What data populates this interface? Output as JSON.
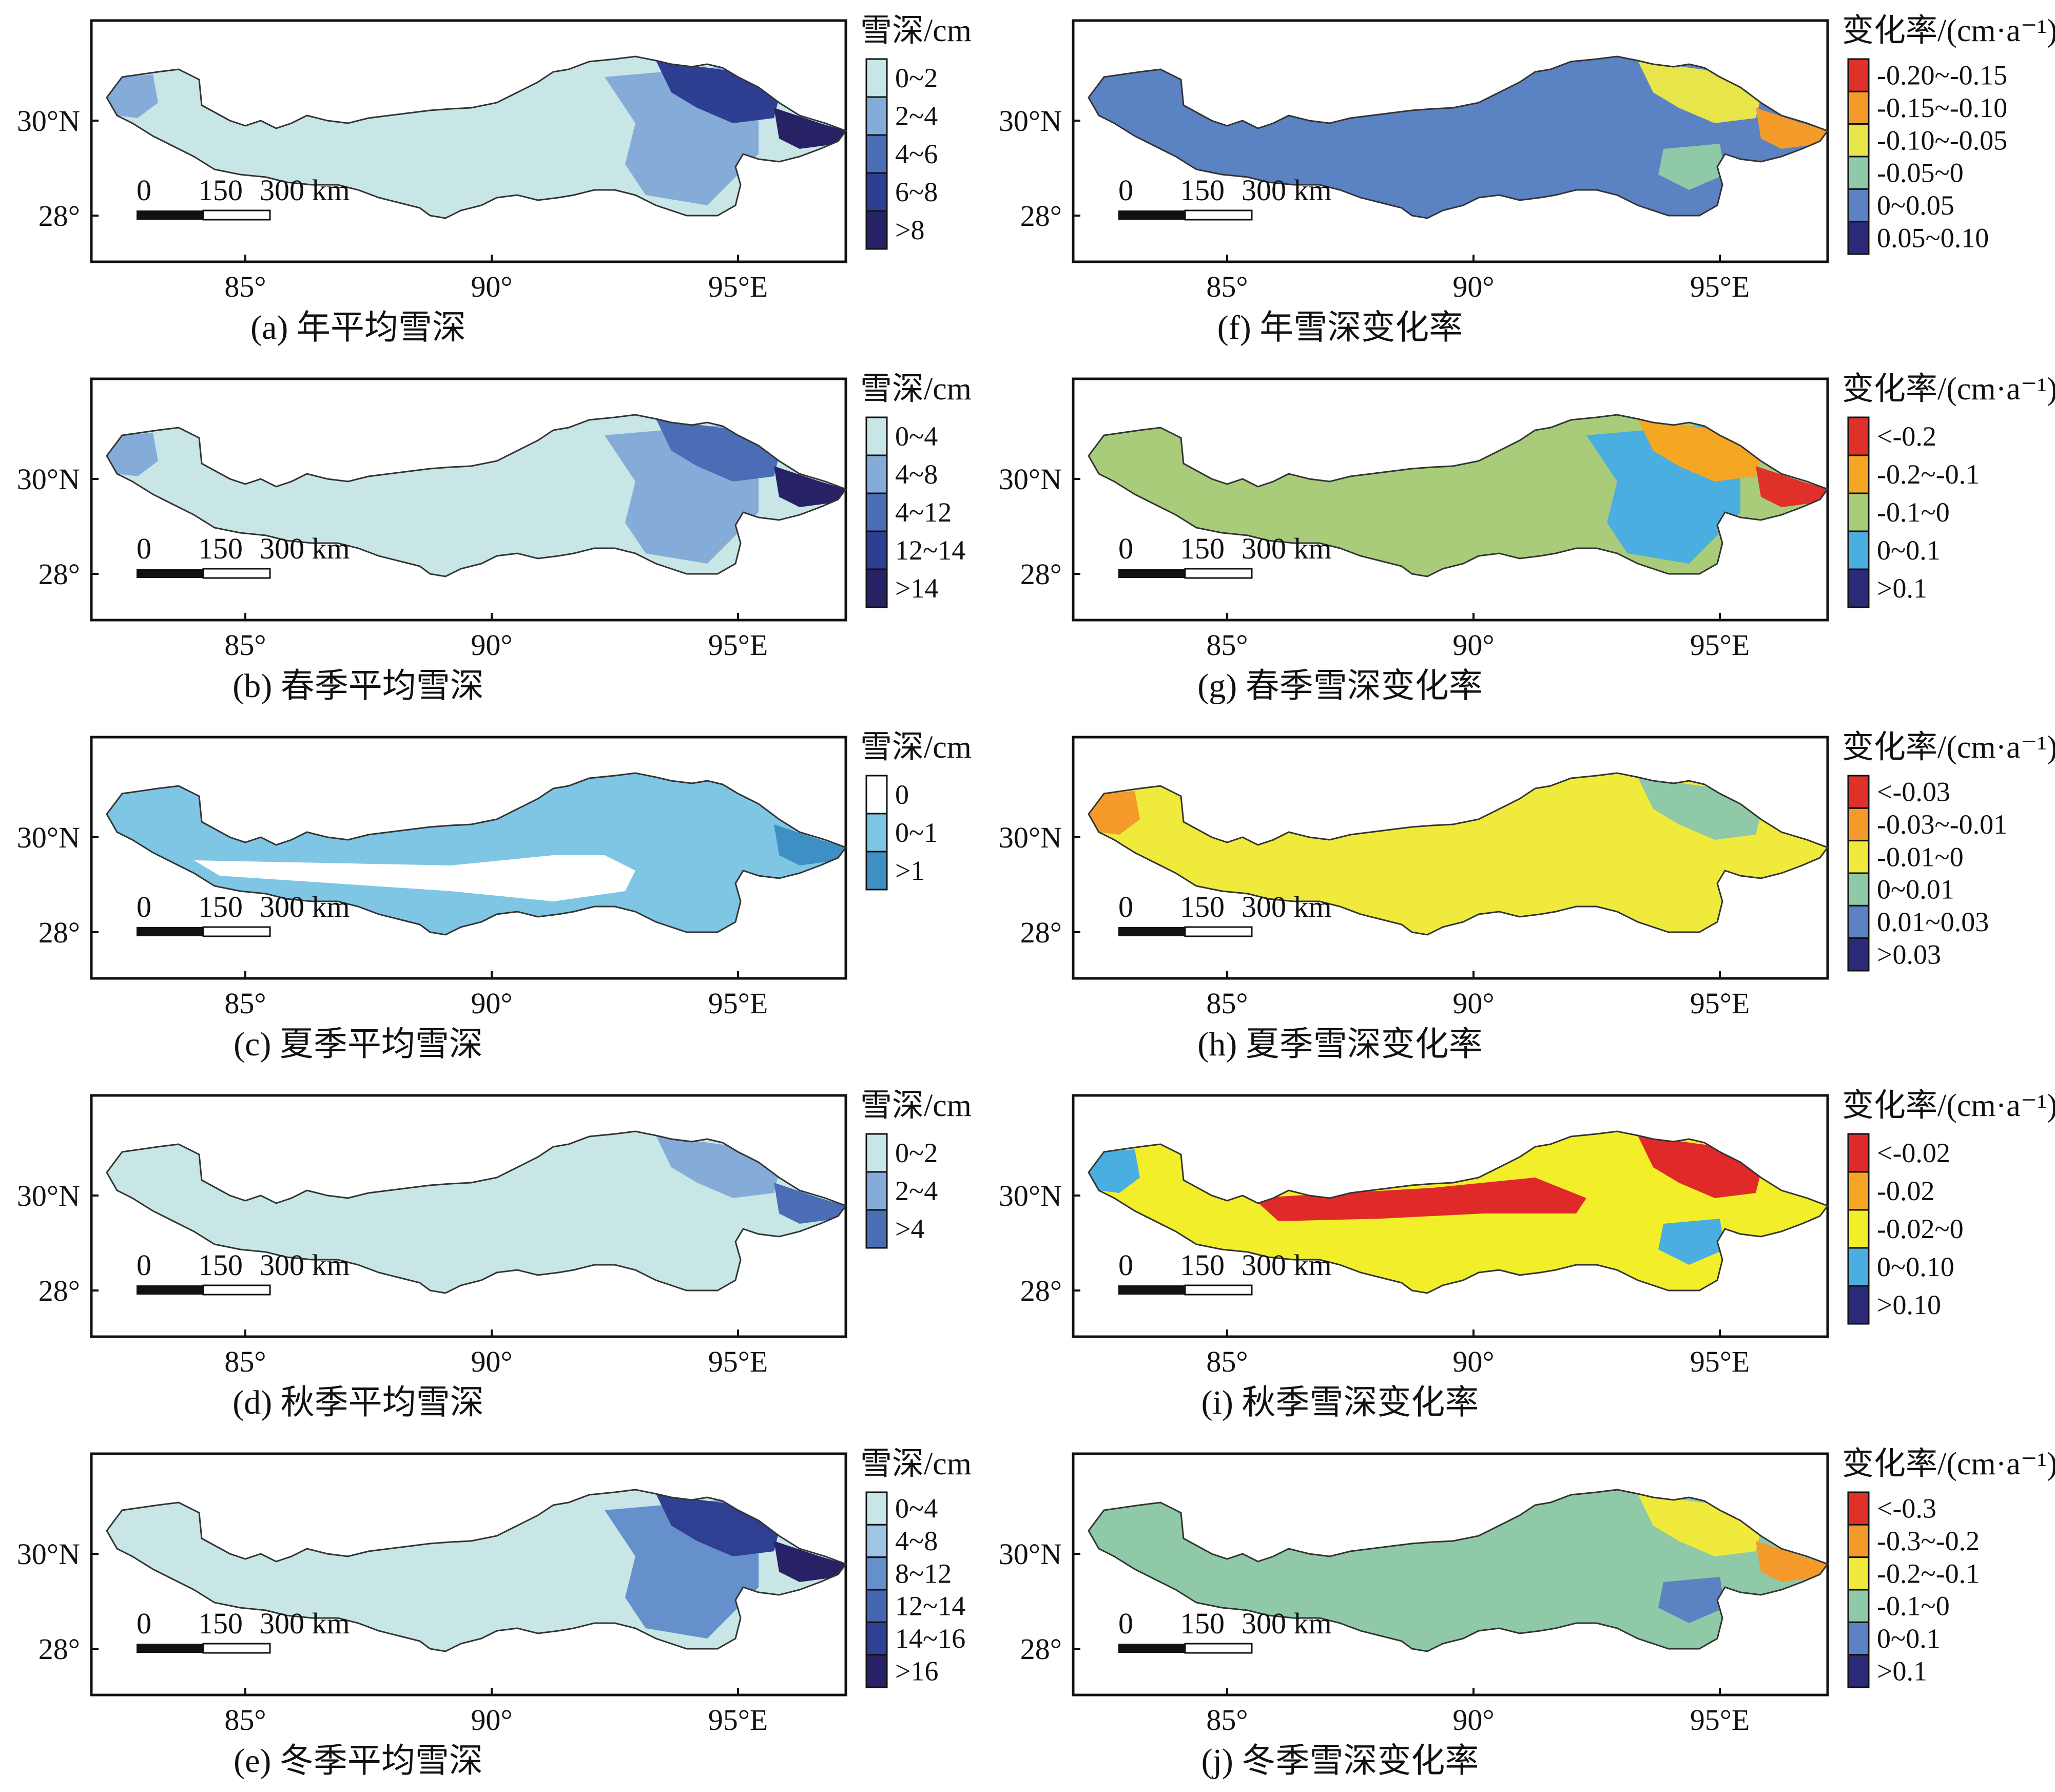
{
  "figure": {
    "panels": [
      {
        "id": "a",
        "caption": "(a) 年平均雪深",
        "legend_title": "雪深/cm",
        "legend": [
          {
            "label": "0~2",
            "color": "#c8e6e6"
          },
          {
            "label": "2~4",
            "color": "#85acd8"
          },
          {
            "label": "4~6",
            "color": "#4a6db5"
          },
          {
            "label": "6~8",
            "color": "#2e3f92"
          },
          {
            "label": ">8",
            "color": "#272266"
          }
        ],
        "base_color": "#c8e6e6"
      },
      {
        "id": "f",
        "caption": "(f) 年雪深变化率",
        "legend_title": "变化率/(cm·a⁻¹)",
        "legend": [
          {
            "label": "-0.20~-0.15",
            "color": "#e0302a"
          },
          {
            "label": "-0.15~-0.10",
            "color": "#f39a2a"
          },
          {
            "label": "-0.10~-0.05",
            "color": "#e8e54a"
          },
          {
            "label": "-0.05~0",
            "color": "#8fc9a7"
          },
          {
            "label": "0~0.05",
            "color": "#5b82c2"
          },
          {
            "label": "0.05~0.10",
            "color": "#2c2a78"
          }
        ],
        "base_color": "#5b82c2"
      },
      {
        "id": "b",
        "caption": "(b) 春季平均雪深",
        "legend_title": "雪深/cm",
        "legend": [
          {
            "label": "0~4",
            "color": "#c8e6e6"
          },
          {
            "label": "4~8",
            "color": "#85acd8"
          },
          {
            "label": "4~12",
            "color": "#4a6db5"
          },
          {
            "label": "12~14",
            "color": "#2e3f92"
          },
          {
            "label": ">14",
            "color": "#272266"
          }
        ],
        "base_color": "#c8e6e6"
      },
      {
        "id": "g",
        "caption": "(g) 春季雪深变化率",
        "legend_title": "变化率/(cm·a⁻¹)",
        "legend": [
          {
            "label": "<-0.2",
            "color": "#e0302a"
          },
          {
            "label": "-0.2~-0.1",
            "color": "#f5a623"
          },
          {
            "label": "-0.1~0",
            "color": "#a8cc7a"
          },
          {
            "label": "0~0.1",
            "color": "#4aaee0"
          },
          {
            "label": ">0.1",
            "color": "#2c2a78"
          }
        ],
        "base_color": "#a8cc7a"
      },
      {
        "id": "c",
        "caption": "(c) 夏季平均雪深",
        "legend_title": "雪深/cm",
        "legend": [
          {
            "label": "0",
            "color": "#ffffff"
          },
          {
            "label": "0~1",
            "color": "#7ec6e4"
          },
          {
            "label": ">1",
            "color": "#3d8fc4"
          }
        ],
        "base_color": "#7ec6e4"
      },
      {
        "id": "h",
        "caption": "(h) 夏季雪深变化率",
        "legend_title": "变化率/(cm·a⁻¹)",
        "legend": [
          {
            "label": "<-0.03",
            "color": "#e0302a"
          },
          {
            "label": "-0.03~-0.01",
            "color": "#f39a2a"
          },
          {
            "label": "-0.01~0",
            "color": "#f0ea3c"
          },
          {
            "label": "0~0.01",
            "color": "#8fc9a7"
          },
          {
            "label": "0.01~0.03",
            "color": "#5b82c2"
          },
          {
            "label": ">0.03",
            "color": "#2c2a78"
          }
        ],
        "base_color": "#f0ea3c"
      },
      {
        "id": "d",
        "caption": "(d) 秋季平均雪深",
        "legend_title": "雪深/cm",
        "legend": [
          {
            "label": "0~2",
            "color": "#c8e6e6"
          },
          {
            "label": "2~4",
            "color": "#85acd8"
          },
          {
            "label": ">4",
            "color": "#4a6db5"
          }
        ],
        "base_color": "#c8e6e6"
      },
      {
        "id": "i",
        "caption": "(i) 秋季雪深变化率",
        "legend_title": "变化率/(cm·a⁻¹)",
        "legend": [
          {
            "label": "<-0.02",
            "color": "#e02a2a"
          },
          {
            "label": "-0.02",
            "color": "#f5a623"
          },
          {
            "label": "-0.02~0",
            "color": "#f3ee2a"
          },
          {
            "label": "0~0.10",
            "color": "#4aaee0"
          },
          {
            "label": ">0.10",
            "color": "#2c2a78"
          }
        ],
        "base_color": "#f3ee2a"
      },
      {
        "id": "e",
        "caption": "(e) 冬季平均雪深",
        "legend_title": "雪深/cm",
        "legend": [
          {
            "label": "0~4",
            "color": "#c8e6e6"
          },
          {
            "label": "4~8",
            "color": "#9fc4e4"
          },
          {
            "label": "8~12",
            "color": "#6690cc"
          },
          {
            "label": "12~14",
            "color": "#4466b0"
          },
          {
            "label": "14~16",
            "color": "#2f3f92"
          },
          {
            "label": ">16",
            "color": "#272266"
          }
        ],
        "base_color": "#c8e6e6"
      },
      {
        "id": "j",
        "caption": "(j) 冬季雪深变化率",
        "legend_title": "变化率/(cm·a⁻¹)",
        "legend": [
          {
            "label": "<-0.3",
            "color": "#e0302a"
          },
          {
            "label": "-0.3~-0.2",
            "color": "#f39a2a"
          },
          {
            "label": "-0.2~-0.1",
            "color": "#f0ea3c"
          },
          {
            "label": "-0.1~0",
            "color": "#8fc9a7"
          },
          {
            "label": "0~0.1",
            "color": "#5b82c2"
          },
          {
            "label": ">0.1",
            "color": "#2c2a78"
          }
        ],
        "base_color": "#8fc9a7"
      }
    ],
    "axes": {
      "y_ticks": [
        "30°N",
        "28°"
      ],
      "x_ticks": [
        "85°",
        "90°",
        "95°E"
      ]
    },
    "scale_bar": {
      "labels": [
        "0",
        "150",
        "300 km"
      ]
    },
    "region_shading": {
      "a": [
        {
          "level": 1,
          "area": "east-center"
        },
        {
          "level": 3,
          "area": "northeast"
        },
        {
          "level": 4,
          "area": "east-tip"
        },
        {
          "level": 1,
          "area": "west-tip"
        }
      ],
      "b": [
        {
          "level": 1,
          "area": "east-center"
        },
        {
          "level": 2,
          "area": "northeast"
        },
        {
          "level": 4,
          "area": "east-tip"
        },
        {
          "level": 1,
          "area": "west-tip"
        }
      ],
      "c": [
        {
          "level": 0,
          "area": "center-gap"
        },
        {
          "level": 2,
          "area": "east-tip"
        }
      ],
      "d": [
        {
          "level": 1,
          "area": "northeast"
        },
        {
          "level": 2,
          "area": "east-tip"
        }
      ],
      "e": [
        {
          "level": 2,
          "area": "east-center"
        },
        {
          "level": 4,
          "area": "northeast"
        },
        {
          "level": 5,
          "area": "east-tip"
        }
      ],
      "f": [
        {
          "level": 2,
          "area": "northeast"
        },
        {
          "level": 1,
          "area": "east-tip"
        },
        {
          "level": 3,
          "area": "east-south"
        }
      ],
      "g": [
        {
          "level": 3,
          "area": "east-center"
        },
        {
          "level": 1,
          "area": "northeast"
        },
        {
          "level": 0,
          "area": "east-tip"
        }
      ],
      "h": [
        {
          "level": 3,
          "area": "northeast"
        },
        {
          "level": 1,
          "area": "west-tip"
        }
      ],
      "i": [
        {
          "level": 0,
          "area": "center-band"
        },
        {
          "level": 0,
          "area": "northeast"
        },
        {
          "level": 3,
          "area": "west-tip"
        },
        {
          "level": 3,
          "area": "east-south"
        }
      ],
      "j": [
        {
          "level": 2,
          "area": "northeast"
        },
        {
          "level": 1,
          "area": "east-tip"
        },
        {
          "level": 4,
          "area": "east-south"
        }
      ]
    }
  }
}
